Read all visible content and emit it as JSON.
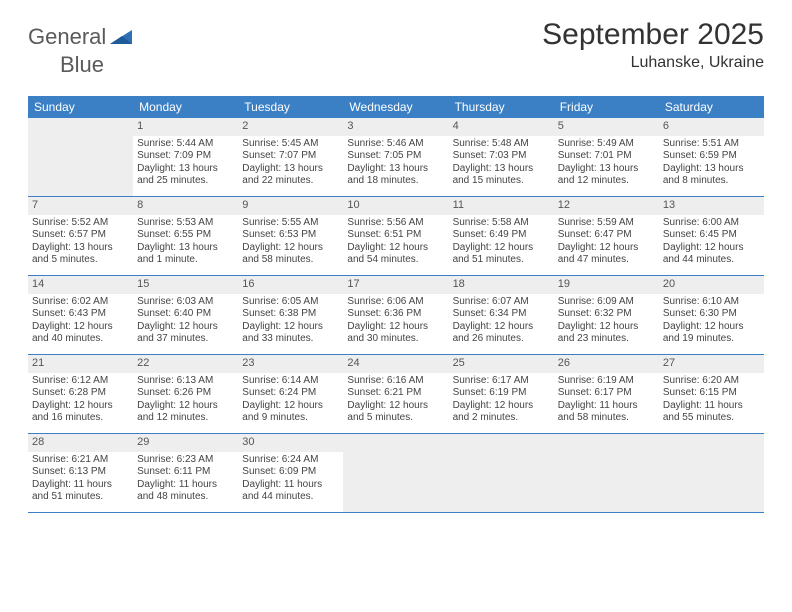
{
  "header": {
    "logo_general": "General",
    "logo_blue": "Blue",
    "month_title": "September 2025",
    "location": "Luhanske, Ukraine"
  },
  "daynames": [
    "Sunday",
    "Monday",
    "Tuesday",
    "Wednesday",
    "Thursday",
    "Friday",
    "Saturday"
  ],
  "colors": {
    "brand_blue": "#3b7fc4",
    "shade_bg": "#eeeeee",
    "text": "#333333"
  },
  "weeks": [
    [
      {
        "day": "",
        "sunrise": "",
        "sunset": "",
        "daylight": ""
      },
      {
        "day": "1",
        "sunrise": "Sunrise: 5:44 AM",
        "sunset": "Sunset: 7:09 PM",
        "daylight": "Daylight: 13 hours and 25 minutes."
      },
      {
        "day": "2",
        "sunrise": "Sunrise: 5:45 AM",
        "sunset": "Sunset: 7:07 PM",
        "daylight": "Daylight: 13 hours and 22 minutes."
      },
      {
        "day": "3",
        "sunrise": "Sunrise: 5:46 AM",
        "sunset": "Sunset: 7:05 PM",
        "daylight": "Daylight: 13 hours and 18 minutes."
      },
      {
        "day": "4",
        "sunrise": "Sunrise: 5:48 AM",
        "sunset": "Sunset: 7:03 PM",
        "daylight": "Daylight: 13 hours and 15 minutes."
      },
      {
        "day": "5",
        "sunrise": "Sunrise: 5:49 AM",
        "sunset": "Sunset: 7:01 PM",
        "daylight": "Daylight: 13 hours and 12 minutes."
      },
      {
        "day": "6",
        "sunrise": "Sunrise: 5:51 AM",
        "sunset": "Sunset: 6:59 PM",
        "daylight": "Daylight: 13 hours and 8 minutes."
      }
    ],
    [
      {
        "day": "7",
        "sunrise": "Sunrise: 5:52 AM",
        "sunset": "Sunset: 6:57 PM",
        "daylight": "Daylight: 13 hours and 5 minutes."
      },
      {
        "day": "8",
        "sunrise": "Sunrise: 5:53 AM",
        "sunset": "Sunset: 6:55 PM",
        "daylight": "Daylight: 13 hours and 1 minute."
      },
      {
        "day": "9",
        "sunrise": "Sunrise: 5:55 AM",
        "sunset": "Sunset: 6:53 PM",
        "daylight": "Daylight: 12 hours and 58 minutes."
      },
      {
        "day": "10",
        "sunrise": "Sunrise: 5:56 AM",
        "sunset": "Sunset: 6:51 PM",
        "daylight": "Daylight: 12 hours and 54 minutes."
      },
      {
        "day": "11",
        "sunrise": "Sunrise: 5:58 AM",
        "sunset": "Sunset: 6:49 PM",
        "daylight": "Daylight: 12 hours and 51 minutes."
      },
      {
        "day": "12",
        "sunrise": "Sunrise: 5:59 AM",
        "sunset": "Sunset: 6:47 PM",
        "daylight": "Daylight: 12 hours and 47 minutes."
      },
      {
        "day": "13",
        "sunrise": "Sunrise: 6:00 AM",
        "sunset": "Sunset: 6:45 PM",
        "daylight": "Daylight: 12 hours and 44 minutes."
      }
    ],
    [
      {
        "day": "14",
        "sunrise": "Sunrise: 6:02 AM",
        "sunset": "Sunset: 6:43 PM",
        "daylight": "Daylight: 12 hours and 40 minutes."
      },
      {
        "day": "15",
        "sunrise": "Sunrise: 6:03 AM",
        "sunset": "Sunset: 6:40 PM",
        "daylight": "Daylight: 12 hours and 37 minutes."
      },
      {
        "day": "16",
        "sunrise": "Sunrise: 6:05 AM",
        "sunset": "Sunset: 6:38 PM",
        "daylight": "Daylight: 12 hours and 33 minutes."
      },
      {
        "day": "17",
        "sunrise": "Sunrise: 6:06 AM",
        "sunset": "Sunset: 6:36 PM",
        "daylight": "Daylight: 12 hours and 30 minutes."
      },
      {
        "day": "18",
        "sunrise": "Sunrise: 6:07 AM",
        "sunset": "Sunset: 6:34 PM",
        "daylight": "Daylight: 12 hours and 26 minutes."
      },
      {
        "day": "19",
        "sunrise": "Sunrise: 6:09 AM",
        "sunset": "Sunset: 6:32 PM",
        "daylight": "Daylight: 12 hours and 23 minutes."
      },
      {
        "day": "20",
        "sunrise": "Sunrise: 6:10 AM",
        "sunset": "Sunset: 6:30 PM",
        "daylight": "Daylight: 12 hours and 19 minutes."
      }
    ],
    [
      {
        "day": "21",
        "sunrise": "Sunrise: 6:12 AM",
        "sunset": "Sunset: 6:28 PM",
        "daylight": "Daylight: 12 hours and 16 minutes."
      },
      {
        "day": "22",
        "sunrise": "Sunrise: 6:13 AM",
        "sunset": "Sunset: 6:26 PM",
        "daylight": "Daylight: 12 hours and 12 minutes."
      },
      {
        "day": "23",
        "sunrise": "Sunrise: 6:14 AM",
        "sunset": "Sunset: 6:24 PM",
        "daylight": "Daylight: 12 hours and 9 minutes."
      },
      {
        "day": "24",
        "sunrise": "Sunrise: 6:16 AM",
        "sunset": "Sunset: 6:21 PM",
        "daylight": "Daylight: 12 hours and 5 minutes."
      },
      {
        "day": "25",
        "sunrise": "Sunrise: 6:17 AM",
        "sunset": "Sunset: 6:19 PM",
        "daylight": "Daylight: 12 hours and 2 minutes."
      },
      {
        "day": "26",
        "sunrise": "Sunrise: 6:19 AM",
        "sunset": "Sunset: 6:17 PM",
        "daylight": "Daylight: 11 hours and 58 minutes."
      },
      {
        "day": "27",
        "sunrise": "Sunrise: 6:20 AM",
        "sunset": "Sunset: 6:15 PM",
        "daylight": "Daylight: 11 hours and 55 minutes."
      }
    ],
    [
      {
        "day": "28",
        "sunrise": "Sunrise: 6:21 AM",
        "sunset": "Sunset: 6:13 PM",
        "daylight": "Daylight: 11 hours and 51 minutes."
      },
      {
        "day": "29",
        "sunrise": "Sunrise: 6:23 AM",
        "sunset": "Sunset: 6:11 PM",
        "daylight": "Daylight: 11 hours and 48 minutes."
      },
      {
        "day": "30",
        "sunrise": "Sunrise: 6:24 AM",
        "sunset": "Sunset: 6:09 PM",
        "daylight": "Daylight: 11 hours and 44 minutes."
      },
      {
        "day": "",
        "sunrise": "",
        "sunset": "",
        "daylight": ""
      },
      {
        "day": "",
        "sunrise": "",
        "sunset": "",
        "daylight": ""
      },
      {
        "day": "",
        "sunrise": "",
        "sunset": "",
        "daylight": ""
      },
      {
        "day": "",
        "sunrise": "",
        "sunset": "",
        "daylight": ""
      }
    ]
  ]
}
